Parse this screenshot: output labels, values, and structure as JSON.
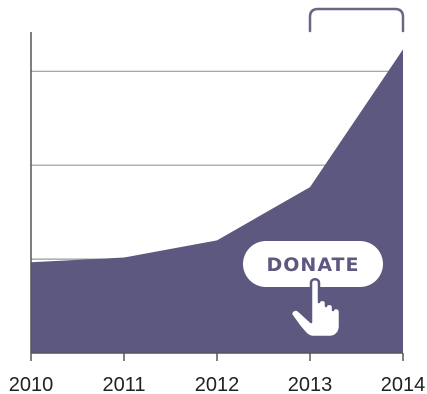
{
  "chart_data": {
    "type": "area",
    "title": "",
    "xlabel": "",
    "ylabel": "",
    "x": [
      "2010",
      "2011",
      "2012",
      "2013",
      "2014"
    ],
    "series": [
      {
        "values": [
          2.9,
          3.05,
          3.6,
          5.3,
          9.7
        ]
      }
    ],
    "ylim": [
      0,
      10
    ],
    "grid": true,
    "colors": {
      "area": "#5c5880",
      "grid": "#999999",
      "axis": "#555555",
      "text": "#222222",
      "bracket": "#6b6781"
    }
  },
  "donate_button": {
    "label": "DONATE",
    "icon": "hand-pointer-icon"
  },
  "annotation": {
    "icon": "bracket-icon",
    "from": "2013",
    "to": "2014"
  }
}
